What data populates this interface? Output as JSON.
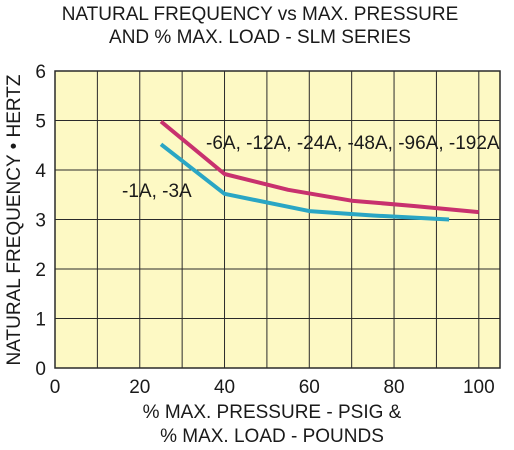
{
  "chart_data": {
    "type": "line",
    "title": "NATURAL FREQUENCY vs MAX. PRESSURE",
    "subtitle": "AND % MAX. LOAD - SLM SERIES",
    "xlabel_line1": "% MAX. PRESSURE - PSIG &",
    "xlabel_line2": "% MAX. LOAD - POUNDS",
    "ylabel": "NATURAL FREQUENCY • HERTZ",
    "xlim": [
      0,
      105
    ],
    "ylim": [
      0,
      6
    ],
    "x_ticks": [
      0,
      20,
      40,
      60,
      80,
      100
    ],
    "y_ticks": [
      0,
      1,
      2,
      3,
      4,
      5,
      6
    ],
    "grid": true,
    "plot_background": "#fdf9c4",
    "grid_color": "#2a2a2a",
    "series": [
      {
        "label": "-6A, -12A, -24A, -48A, -96A, -192A",
        "color": "#c8316e",
        "x": [
          25,
          40,
          55,
          70,
          85,
          100
        ],
        "y": [
          4.98,
          3.92,
          3.6,
          3.38,
          3.27,
          3.15
        ]
      },
      {
        "label": "-1A, -3A",
        "color": "#2aa6c4",
        "x": [
          25,
          40,
          60,
          75,
          93
        ],
        "y": [
          4.52,
          3.52,
          3.17,
          3.08,
          3.0
        ]
      }
    ]
  }
}
